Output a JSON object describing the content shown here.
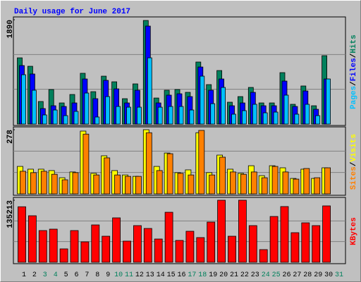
{
  "chart_data": [
    {
      "type": "bar",
      "title": "Daily usage for June 2017",
      "categories": [
        "1",
        "2",
        "3",
        "4",
        "5",
        "6",
        "7",
        "8",
        "9",
        "10",
        "11",
        "12",
        "13",
        "14",
        "15",
        "16",
        "17",
        "18",
        "19",
        "20",
        "21",
        "22",
        "23",
        "24",
        "25",
        "26",
        "27",
        "28",
        "29",
        "30",
        "31"
      ],
      "category_colors": [
        "#000000",
        "#000000",
        "#00805c",
        "#00805c",
        "#000000",
        "#000000",
        "#000000",
        "#000000",
        "#000000",
        "#00805c",
        "#00805c",
        "#000000",
        "#000000",
        "#000000",
        "#000000",
        "#000000",
        "#00805c",
        "#00805c",
        "#000000",
        "#000000",
        "#000000",
        "#000000",
        "#000000",
        "#00805c",
        "#00805c",
        "#000000",
        "#000000",
        "#000000",
        "#000000",
        "#000000",
        "#00805c"
      ],
      "legend_separator": "/",
      "ylim": [
        0,
        1890
      ],
      "yticks": [
        1890
      ],
      "grid": true,
      "series": [
        {
          "name": "Hits",
          "color": "#00805c",
          "values": [
            1200,
            1047,
            409,
            626,
            383,
            536,
            920,
            587,
            868,
            766,
            460,
            728,
            1877,
            472,
            613,
            626,
            575,
            1124,
            715,
            970,
            396,
            498,
            664,
            383,
            383,
            932,
            358,
            690,
            332,
            1239,
            null
          ]
        },
        {
          "name": "Files",
          "color": "#0000ff",
          "values": [
            1060,
            907,
            281,
            332,
            319,
            383,
            817,
            460,
            792,
            638,
            383,
            613,
            1775,
            383,
            524,
            549,
            498,
            1034,
            613,
            817,
            332,
            383,
            575,
            332,
            332,
            779,
            319,
            600,
            268,
            817,
            null
          ]
        },
        {
          "name": "Pages",
          "color": "#00c0ff",
          "values": [
            894,
            613,
            166,
            255,
            153,
            230,
            562,
            128,
            498,
            319,
            306,
            306,
            1200,
            306,
            319,
            319,
            255,
            868,
            370,
            664,
            179,
            243,
            358,
            204,
            217,
            524,
            179,
            358,
            153,
            817,
            null
          ]
        }
      ]
    },
    {
      "type": "bar",
      "ylim": [
        0,
        278
      ],
      "yticks": [
        278
      ],
      "grid": true,
      "series": [
        {
          "name": "Visits",
          "color": "#ffff00",
          "values": [
            119,
            107,
            107,
            101,
            70,
            95,
            272,
            89,
            165,
            101,
            82,
            76,
            278,
            119,
            177,
            92,
            104,
            265,
            92,
            168,
            107,
            89,
            122,
            79,
            122,
            113,
            67,
            107,
            67,
            113,
            null
          ]
        },
        {
          "name": "Sites",
          "color": "#ff8000",
          "values": [
            98,
            92,
            98,
            85,
            61,
            92,
            259,
            82,
            156,
            82,
            76,
            76,
            265,
            101,
            174,
            89,
            82,
            275,
            82,
            159,
            95,
            85,
            95,
            70,
            119,
            95,
            64,
            110,
            70,
            113,
            null
          ]
        }
      ]
    },
    {
      "type": "bar",
      "ylim": [
        0,
        135213
      ],
      "yticks": [
        135213
      ],
      "grid": true,
      "series": [
        {
          "name": "KBytes",
          "color": "#ff0000",
          "values": [
            121000,
            101400,
            69100,
            72200,
            29200,
            69100,
            44500,
            81400,
            56800,
            96800,
            46100,
            79900,
            73700,
            50700,
            109000,
            47600,
            67600,
            53800,
            87600,
            135200,
            56800,
            135200,
            79900,
            27600,
            99800,
            121400,
            64500,
            86000,
            79900,
            122900,
            null
          ]
        }
      ]
    }
  ]
}
